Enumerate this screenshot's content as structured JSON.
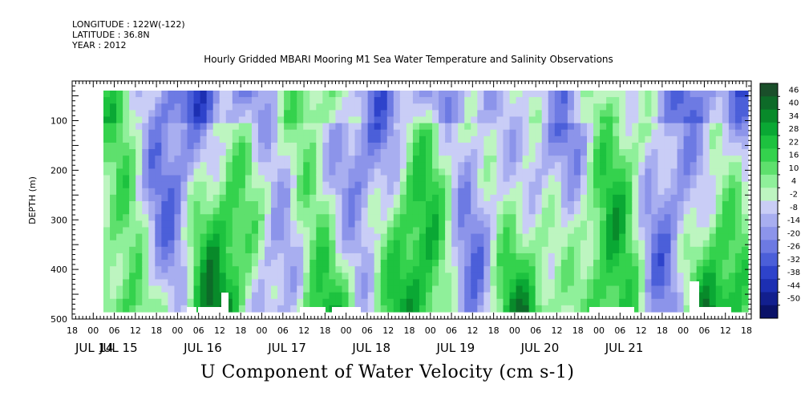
{
  "header": {
    "longitude": "LONGITUDE : 122W(-122)",
    "latitude": "LATITUDE : 36.8N",
    "year": "YEAR : 2012"
  },
  "chart_data": {
    "type": "heatmap",
    "title": "Hourly Gridded MBARI Mooring M1 Sea Water Temperature and Salinity Observations",
    "xlabel": "U Component of Water Velocity (cm s-1)",
    "ylabel": "DEPTH (m)",
    "x_start_label": "JUL 14 18:00",
    "x_end_label": "JUL 21 18:00",
    "hour_tick_labels": [
      "18",
      "00",
      "06",
      "12",
      "18",
      "00",
      "06",
      "12",
      "18",
      "00",
      "06",
      "12",
      "18",
      "00",
      "06",
      "12",
      "18",
      "00",
      "06",
      "12",
      "18",
      "00",
      "06",
      "12",
      "18",
      "00",
      "06",
      "12",
      "18",
      "00",
      "06",
      "12",
      "18"
    ],
    "day_labels": [
      "JUL 14",
      "JUL 15",
      "JUL 16",
      "JUL 17",
      "JUL 18",
      "JUL 19",
      "JUL 20",
      "JUL 21"
    ],
    "y_ticks": [
      100,
      200,
      300,
      400,
      500
    ],
    "ylim": [
      500,
      20
    ],
    "colorbar_levels": [
      46,
      40,
      34,
      28,
      22,
      16,
      10,
      4,
      -2,
      -8,
      -14,
      -20,
      -26,
      -32,
      -38,
      -44,
      -50
    ],
    "colorbar_labels": [
      "46",
      "40",
      "34",
      "28",
      "22",
      "16",
      "10",
      "4",
      "-2",
      "-8",
      "-14",
      "-20",
      "-26",
      "-32",
      "-38",
      "-44",
      "-50"
    ],
    "colormap": [
      "#1a4f2a",
      "#0d6b28",
      "#088a2a",
      "#0aa834",
      "#1dc23f",
      "#34d24d",
      "#5ee06d",
      "#8ff09a",
      "#bdf5c0",
      "#c9cdf6",
      "#a8aef0",
      "#8c94ea",
      "#6d7ae3",
      "#4b5fd9",
      "#2e43cb",
      "#1c2fb2",
      "#121f8e",
      "#0a1268"
    ],
    "field_note_row": "blue (negative) dominates upper 250 m; green (positive) dominates 300-500 m"
  }
}
